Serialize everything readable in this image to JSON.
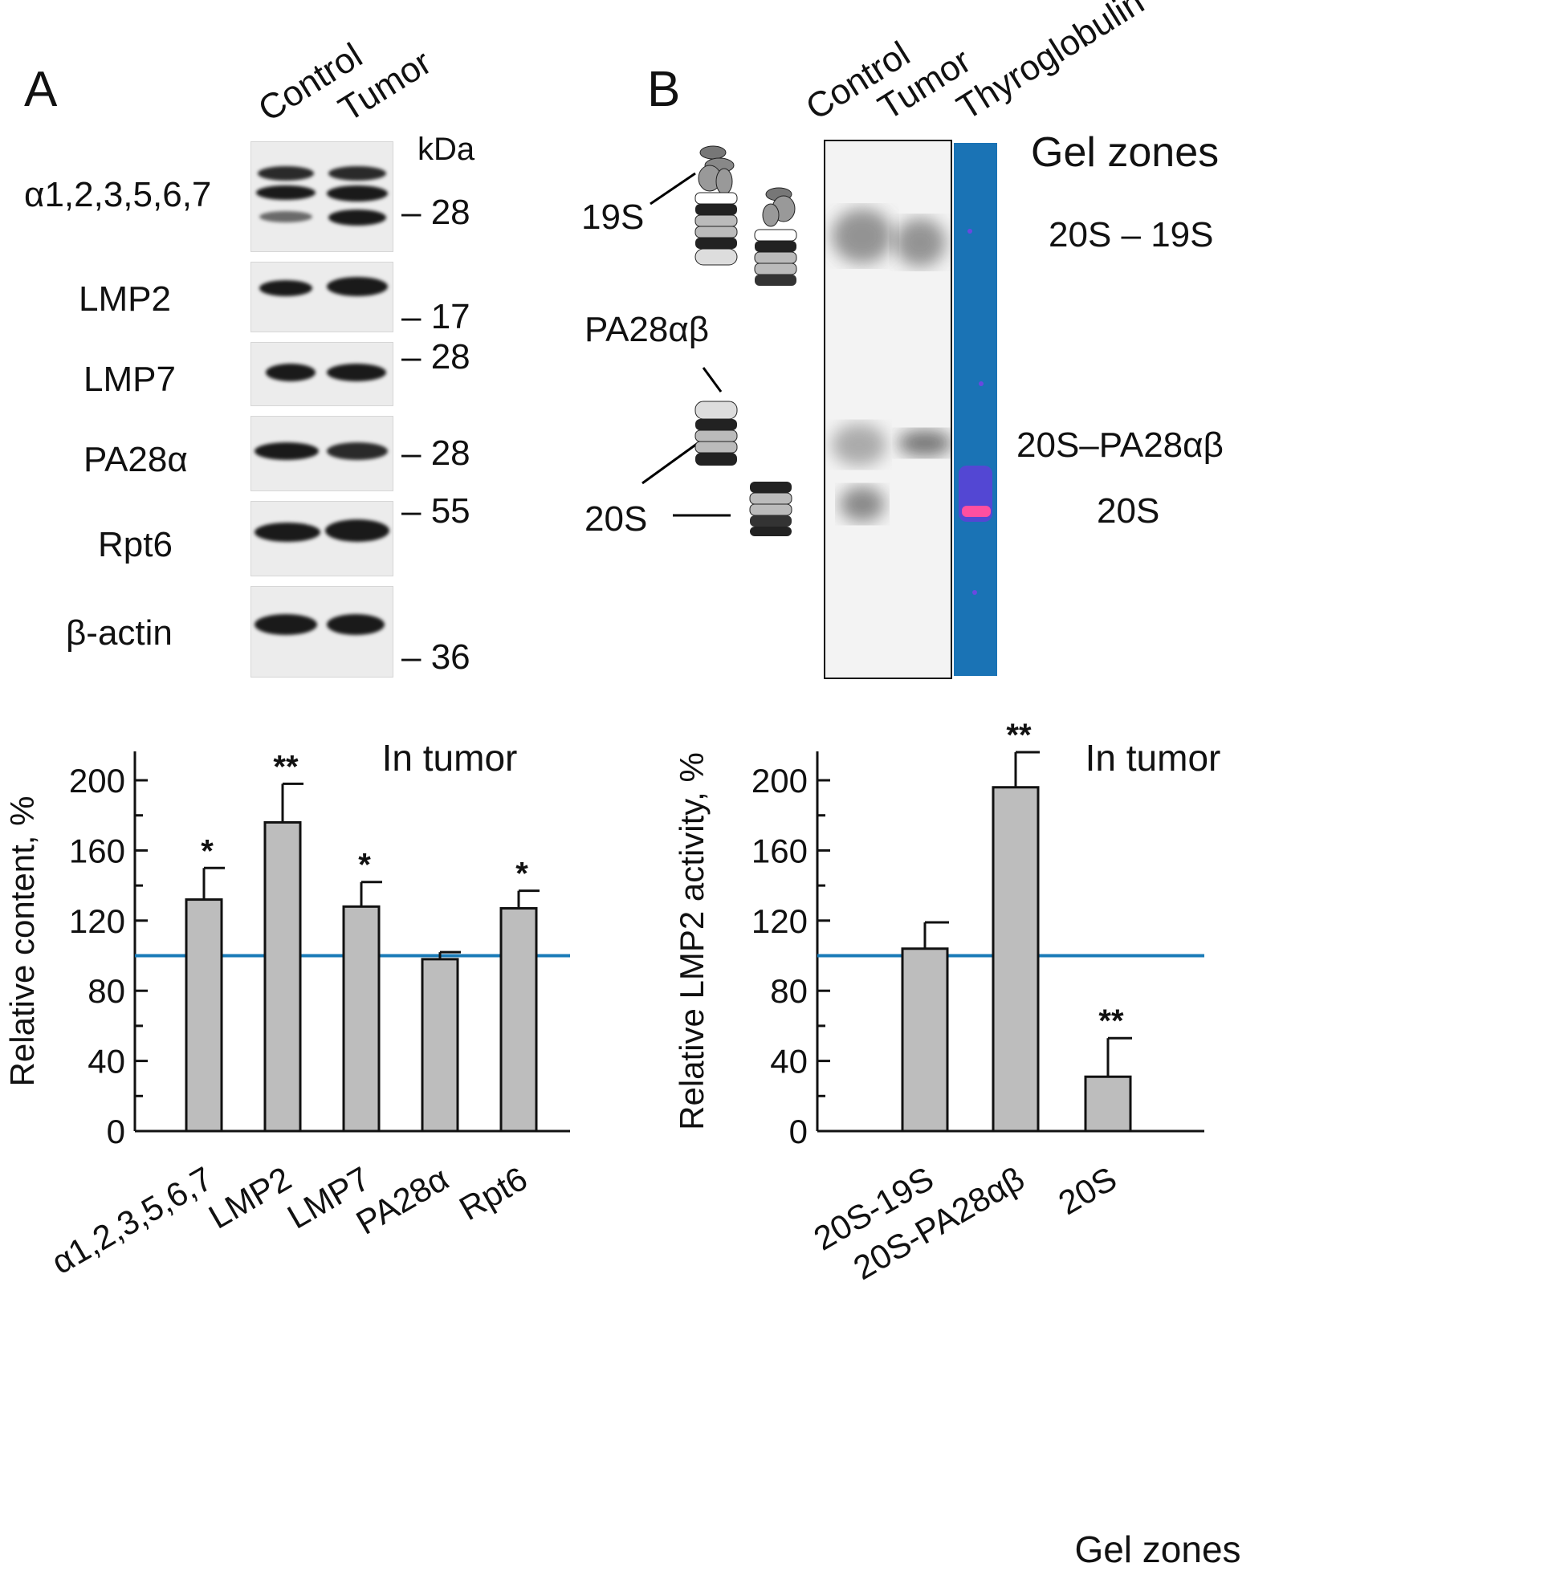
{
  "panel_a": {
    "letter": "A",
    "lanes": [
      "Control",
      "Tumor"
    ],
    "kda_label": "kDa",
    "blots": [
      {
        "label": "α1,2,3,5,6,7",
        "markers": [
          "28"
        ]
      },
      {
        "label": "LMP2",
        "markers": [
          "17"
        ]
      },
      {
        "label": "LMP7",
        "markers": [
          "28"
        ]
      },
      {
        "label": "PA28α",
        "markers": [
          "28"
        ]
      },
      {
        "label": "Rpt6",
        "markers": [
          "55"
        ]
      },
      {
        "label": "β-actin",
        "markers": [
          "36"
        ]
      }
    ]
  },
  "panel_b": {
    "letter": "B",
    "lanes": [
      "Control",
      "Tumor",
      "Thyroglobulin"
    ],
    "complexes": [
      "19S",
      "PA28αβ",
      "20S"
    ],
    "gel_zones_title": "Gel zones",
    "zones": [
      "20S – 19S",
      "20S–PA28αβ",
      "20S"
    ],
    "colors": {
      "thyroglobulin_lane": "#1a73b5",
      "reference_line": "#1a7bb8"
    }
  },
  "chart_data": [
    {
      "type": "bar",
      "title": "In tumor",
      "xlabel": "",
      "ylabel": "Relative content, %",
      "ylim": [
        0,
        200
      ],
      "yticks": [
        "0",
        "40",
        "80",
        "120",
        "160",
        "200"
      ],
      "reference_line": 100,
      "categories": [
        "α1,2,3,5,6,7",
        "LMP2",
        "LMP7",
        "PA28α",
        "Rpt6"
      ],
      "values": [
        132,
        176,
        128,
        98,
        127
      ],
      "errors": [
        18,
        22,
        14,
        4,
        10
      ],
      "significance": [
        "*",
        "**",
        "*",
        "",
        "*"
      ]
    },
    {
      "type": "bar",
      "title": "In tumor",
      "xlabel": "Gel zones",
      "ylabel": "Relative LMP2 activity, %",
      "ylim": [
        0,
        200
      ],
      "yticks": [
        "0",
        "40",
        "80",
        "120",
        "160",
        "200"
      ],
      "reference_line": 100,
      "categories": [
        "20S-19S",
        "20S-PA28αβ",
        "20S"
      ],
      "values": [
        104,
        196,
        31
      ],
      "errors": [
        15,
        20,
        22
      ],
      "significance": [
        "",
        "**",
        "**"
      ]
    }
  ]
}
